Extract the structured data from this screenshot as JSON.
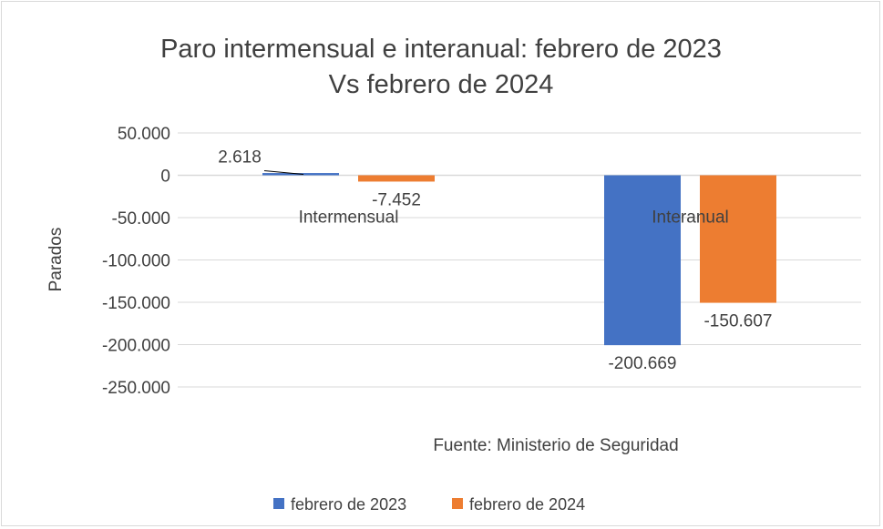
{
  "chart_data": {
    "type": "bar",
    "title": [
      "Paro intermensual e interanual: febrero de 2023",
      "Vs febrero de 2024"
    ],
    "ylabel": "Parados",
    "xlabel": "",
    "categories": [
      "Intermensual",
      "Interanual"
    ],
    "series": [
      {
        "name": "febrero de 2023",
        "color": "#4472c4",
        "values": [
          2618,
          -200669
        ],
        "labels": [
          "2.618",
          "-200.669"
        ]
      },
      {
        "name": "febrero de 2024",
        "color": "#ed7d31",
        "values": [
          -7452,
          -150607
        ],
        "labels": [
          "-7.452",
          "-150.607"
        ]
      }
    ],
    "ylim": [
      -250000,
      50000
    ],
    "yticks": [
      50000,
      0,
      -50000,
      -100000,
      -150000,
      -200000,
      -250000
    ],
    "ytick_labels": [
      "50.000",
      "0",
      "-50.000",
      "-100.000",
      "-150.000",
      "-200.000",
      "-250.000"
    ],
    "grid": true,
    "legend": "bottom",
    "annotation": "Fuente: Ministerio de Seguridad"
  }
}
